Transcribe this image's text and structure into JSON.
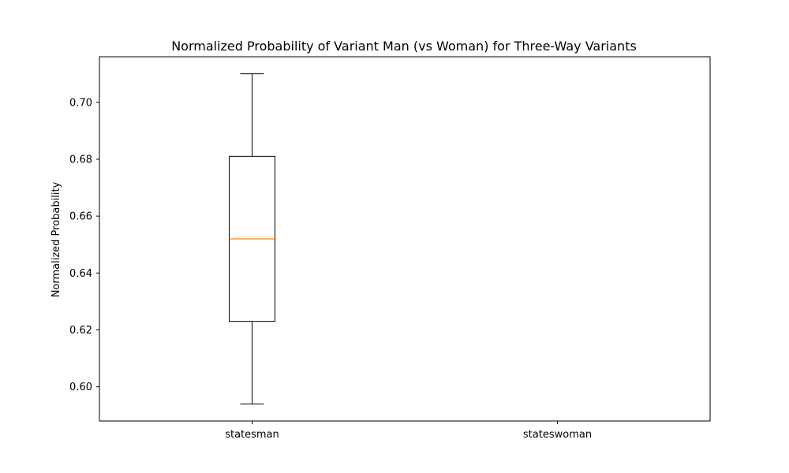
{
  "chart_data": {
    "type": "box",
    "title": "Normalized Probability of Variant Man (vs Woman) for Three-Way Variants",
    "xlabel": "",
    "ylabel": "Normalized Probability",
    "categories": [
      "statesman",
      "stateswoman"
    ],
    "ylim": [
      0.588,
      0.716
    ],
    "yticks": [
      0.6,
      0.62,
      0.64,
      0.66,
      0.68,
      0.7
    ],
    "ytick_labels": [
      "0.60",
      "0.62",
      "0.64",
      "0.66",
      "0.68",
      "0.70"
    ],
    "boxes": [
      {
        "category": "statesman",
        "whisker_low": 0.594,
        "q1": 0.623,
        "median": 0.652,
        "q3": 0.681,
        "whisker_high": 0.71
      },
      {
        "category": "stateswoman",
        "whisker_low": null,
        "q1": null,
        "median": null,
        "q3": null,
        "whisker_high": null
      }
    ],
    "grid": false,
    "colors": {
      "box": "#000000",
      "median": "#ff7f0e",
      "axes": "#000000"
    }
  }
}
